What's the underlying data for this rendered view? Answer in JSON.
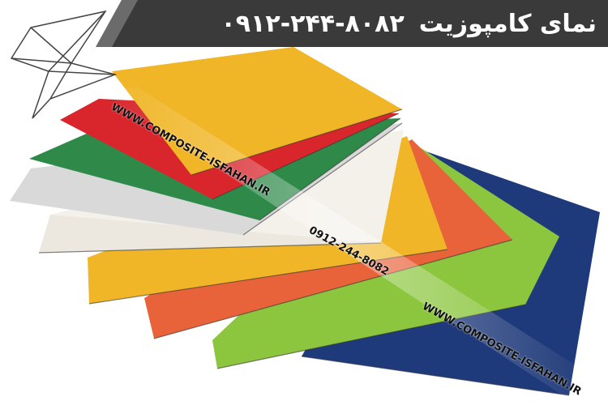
{
  "banner": {
    "title": "نمای کامپوزیت",
    "phone": "۰۹۱۲-۲۴۴-۸۰۸۲"
  },
  "watermark": {
    "url_top": "WWW.COMPOSITE-ISFAHAN.IR",
    "phone": "0912-244-8082",
    "url_bottom": "WWW.COMPOSITE-ISFAHAN.IR"
  },
  "colors": {
    "banner": "#3a3a3a",
    "yellow": "#f0b627",
    "red": "#d8262c",
    "green": "#2f8a4a",
    "gray": "#d9d9d9",
    "white": "#f4f1ea",
    "orange": "#e8623a",
    "lime": "#8cc63f",
    "navy": "#1f3a7a"
  },
  "icons": {
    "logo": "star-logo-icon"
  }
}
